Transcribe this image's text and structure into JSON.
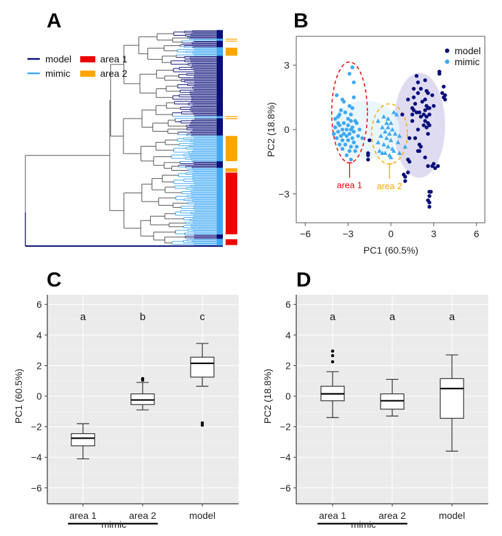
{
  "colors": {
    "model": "#0a0f7a",
    "mimic": "#3fa9f5",
    "area1": "#ee0000",
    "area2": "#ffa500",
    "tree_branch": "#555555",
    "ggplot_bg": "#ebebeb",
    "model_ellipse_fill": "#d9d6f0",
    "mimic_ellipse_fill": "#e6f4fd"
  },
  "chart_data": [
    {
      "panel": "A",
      "type": "dendrogram",
      "title": "A",
      "legend": [
        {
          "label": "model",
          "kind": "line",
          "color_key": "model"
        },
        {
          "label": "mimic",
          "kind": "line",
          "color_key": "mimic"
        },
        {
          "label": "area 1",
          "kind": "box",
          "color_key": "area1"
        },
        {
          "label": "area 2",
          "kind": "box",
          "color_key": "area2"
        }
      ],
      "legend_placement": "top-left",
      "tip_groups_top_to_bottom": [
        {
          "group": "model",
          "share": 0.04,
          "area": null
        },
        {
          "group": "mimic",
          "share": 0.01,
          "area": "area2"
        },
        {
          "group": "model",
          "share": 0.03,
          "area": null
        },
        {
          "group": "mimic",
          "share": 0.04,
          "area": "area2"
        },
        {
          "group": "model",
          "share": 0.28,
          "area": null
        },
        {
          "group": "mimic",
          "share": 0.01,
          "area": "area2"
        },
        {
          "group": "model",
          "share": 0.08,
          "area": null
        },
        {
          "group": "mimic",
          "share": 0.12,
          "area": "area2"
        },
        {
          "group": "model",
          "share": 0.03,
          "area": null
        },
        {
          "group": "mimic",
          "share": 0.02,
          "area": "area2"
        },
        {
          "group": "mimic",
          "share": 0.29,
          "area": "area1"
        },
        {
          "group": "model",
          "share": 0.02,
          "area": null
        },
        {
          "group": "mimic",
          "share": 0.03,
          "area": "area1"
        }
      ]
    },
    {
      "panel": "B",
      "type": "scatter",
      "title": "B",
      "xlabel": "PC1 (60.5%)",
      "ylabel": "PC2 (18.8%)",
      "xlim": [
        -6.6,
        6.6
      ],
      "ylim": [
        -4.4,
        4.4
      ],
      "xticks": [
        -6,
        -3,
        0,
        3,
        6
      ],
      "yticks": [
        -3,
        0,
        3
      ],
      "grid": false,
      "legend": [
        "model",
        "mimic"
      ],
      "legend_placement": "top-right",
      "annotations": [
        {
          "text": "area 1",
          "x": -3.1,
          "y": -2.7,
          "color_key": "area1"
        },
        {
          "text": "area 2",
          "x": -0.3,
          "y": -2.7,
          "color_key": "area2"
        }
      ],
      "ellipses": [
        {
          "name": "area 1",
          "cx": -2.9,
          "cy": 0.8,
          "rx": 1.25,
          "ry": 2.35,
          "style": "dashed",
          "color_key": "area1"
        },
        {
          "name": "area 2",
          "cx": -0.1,
          "cy": -0.2,
          "rx": 1.25,
          "ry": 1.4,
          "style": "dashed",
          "color_key": "area2"
        },
        {
          "name": "model",
          "cx": 2.0,
          "cy": 0.2,
          "rx": 1.8,
          "ry": 2.45,
          "style": "filled",
          "color_key": "model_ellipse_fill"
        },
        {
          "name": "mimic",
          "cx": -1.8,
          "cy": 0.0,
          "rx": 2.4,
          "ry": 1.35,
          "style": "filled",
          "color_key": "mimic_ellipse_fill"
        }
      ],
      "series": [
        {
          "name": "mimic area 1",
          "marker": "circle",
          "color_key": "mimic",
          "points": [
            [
              -2.7,
              2.9
            ],
            [
              -2.9,
              2.6
            ],
            [
              -2.6,
              2.2
            ],
            [
              -3.8,
              1.6
            ],
            [
              -2.6,
              1.5
            ],
            [
              -3.4,
              1.4
            ],
            [
              -3.3,
              1.3
            ],
            [
              -2.9,
              1.1
            ],
            [
              -2.7,
              1.0
            ],
            [
              -3.5,
              0.9
            ],
            [
              -3.2,
              0.8
            ],
            [
              -3.6,
              0.7
            ],
            [
              -2.8,
              0.7
            ],
            [
              -3.9,
              0.5
            ],
            [
              -3.7,
              0.6
            ],
            [
              -3.0,
              0.5
            ],
            [
              -2.8,
              0.4
            ],
            [
              -2.5,
              0.4
            ],
            [
              -3.3,
              0.3
            ],
            [
              -2.4,
              0.3
            ],
            [
              -3.6,
              0.2
            ],
            [
              -3.0,
              0.2
            ],
            [
              -2.7,
              0.1
            ],
            [
              -3.9,
              0.1
            ],
            [
              -3.4,
              0.0
            ],
            [
              -3.1,
              0.0
            ],
            [
              -2.8,
              0.0
            ],
            [
              -2.6,
              -0.1
            ],
            [
              -3.7,
              -0.1
            ],
            [
              -3.3,
              -0.2
            ],
            [
              -2.9,
              -0.2
            ],
            [
              -4.0,
              -0.2
            ],
            [
              -3.5,
              -0.3
            ],
            [
              -3.1,
              -0.3
            ],
            [
              -2.7,
              -0.4
            ],
            [
              -2.3,
              -0.3
            ],
            [
              -3.8,
              -0.4
            ],
            [
              -3.4,
              -0.5
            ],
            [
              -3.0,
              -0.5
            ],
            [
              -2.6,
              -0.6
            ],
            [
              -3.6,
              -0.7
            ],
            [
              -3.2,
              -0.7
            ],
            [
              -2.8,
              -0.8
            ],
            [
              -3.4,
              -0.9
            ],
            [
              -2.9,
              -1.0
            ],
            [
              -2.5,
              -1.0
            ],
            [
              -3.1,
              -1.2
            ],
            [
              -2.8,
              -1.4
            ],
            [
              -2.4,
              -0.8
            ],
            [
              -3.7,
              0.3
            ],
            [
              -2.2,
              0.0
            ],
            [
              -2.0,
              -0.4
            ]
          ]
        },
        {
          "name": "mimic area 2",
          "marker": "triangle",
          "color_key": "mimic",
          "points": [
            [
              0.2,
              0.8
            ],
            [
              0.4,
              0.7
            ],
            [
              -0.5,
              0.6
            ],
            [
              -0.9,
              0.4
            ],
            [
              -0.3,
              0.3
            ],
            [
              0.0,
              0.3
            ],
            [
              -0.6,
              0.1
            ],
            [
              -0.2,
              0.1
            ],
            [
              0.1,
              0.0
            ],
            [
              -0.4,
              -0.1
            ],
            [
              -0.1,
              -0.2
            ],
            [
              0.3,
              -0.2
            ],
            [
              -0.7,
              -0.3
            ],
            [
              0.6,
              -0.3
            ],
            [
              -0.3,
              -0.4
            ],
            [
              0.0,
              -0.5
            ],
            [
              0.5,
              -0.6
            ],
            [
              -0.5,
              -0.7
            ],
            [
              -0.2,
              -0.8
            ],
            [
              0.1,
              -0.9
            ],
            [
              -0.8,
              -1.0
            ],
            [
              -0.4,
              -1.1
            ],
            [
              0.2,
              -1.0
            ],
            [
              -0.1,
              -1.2
            ],
            [
              0.6,
              -1.1
            ],
            [
              -0.6,
              -1.1
            ],
            [
              0.0,
              -1.3
            ],
            [
              1.0,
              -0.8
            ],
            [
              -0.2,
              0.5
            ],
            [
              -0.9,
              -0.6
            ]
          ]
        },
        {
          "name": "model",
          "marker": "circle",
          "color_key": "model",
          "points": [
            [
              1.8,
              2.5
            ],
            [
              3.4,
              2.7
            ],
            [
              3.4,
              2.6
            ],
            [
              1.9,
              2.2
            ],
            [
              2.4,
              2.3
            ],
            [
              1.6,
              1.9
            ],
            [
              2.1,
              1.9
            ],
            [
              3.7,
              2.0
            ],
            [
              1.9,
              1.7
            ],
            [
              2.5,
              1.8
            ],
            [
              2.6,
              1.7
            ],
            [
              3.6,
              1.7
            ],
            [
              3.8,
              1.6
            ],
            [
              3.7,
              1.5
            ],
            [
              2.9,
              1.6
            ],
            [
              1.2,
              1.4
            ],
            [
              1.6,
              1.5
            ],
            [
              2.4,
              1.4
            ],
            [
              3.8,
              1.4
            ],
            [
              1.7,
              1.2
            ],
            [
              2.2,
              1.3
            ],
            [
              2.5,
              1.1
            ],
            [
              3.0,
              1.1
            ],
            [
              2.6,
              1.0
            ],
            [
              1.5,
              1.0
            ],
            [
              2.4,
              0.9
            ],
            [
              2.7,
              1.0
            ],
            [
              1.6,
              0.9
            ],
            [
              1.8,
              0.8
            ],
            [
              2.0,
              0.8
            ],
            [
              1.5,
              0.7
            ],
            [
              2.3,
              0.7
            ],
            [
              2.7,
              0.7
            ],
            [
              0.8,
              0.7
            ],
            [
              2.5,
              0.6
            ],
            [
              2.1,
              0.6
            ],
            [
              1.5,
              0.4
            ],
            [
              2.4,
              0.4
            ],
            [
              2.6,
              0.3
            ],
            [
              2.7,
              0.2
            ],
            [
              2.3,
              0.2
            ],
            [
              2.5,
              0.1
            ],
            [
              1.9,
              0.0
            ],
            [
              2.6,
              -0.2
            ],
            [
              1.3,
              -0.4
            ],
            [
              1.7,
              -0.4
            ],
            [
              2.0,
              -0.7
            ],
            [
              2.1,
              -0.8
            ],
            [
              1.9,
              -1.0
            ],
            [
              2.0,
              -1.0
            ],
            [
              2.4,
              -1.3
            ],
            [
              1.2,
              -1.4
            ],
            [
              1.3,
              -1.5
            ],
            [
              2.6,
              -1.7
            ],
            [
              2.9,
              -1.7
            ],
            [
              3.0,
              -1.6
            ],
            [
              3.1,
              -1.8
            ],
            [
              3.3,
              -1.7
            ],
            [
              0.9,
              -2.1
            ],
            [
              1.0,
              -2.2
            ],
            [
              1.2,
              -2.0
            ],
            [
              1.0,
              -2.4
            ],
            [
              2.7,
              -2.9
            ],
            [
              2.8,
              -2.9
            ],
            [
              2.7,
              -3.1
            ],
            [
              2.6,
              -3.3
            ],
            [
              2.7,
              -3.4
            ],
            [
              2.7,
              -3.6
            ],
            [
              -1.5,
              -0.5
            ],
            [
              -1.6,
              -1.1
            ],
            [
              -1.6,
              -1.2
            ],
            [
              -1.6,
              -1.4
            ]
          ]
        }
      ]
    },
    {
      "panel": "C",
      "type": "box",
      "title": "C",
      "ylabel": "PC1 (60.5%)",
      "xlabel": "",
      "categories": [
        "area 1",
        "area 2",
        "model"
      ],
      "group_label": "mimic",
      "group_spans": [
        "area 1",
        "area 2"
      ],
      "ylim": [
        -6.6,
        6.6
      ],
      "yticks": [
        -6,
        -4,
        -2,
        0,
        2,
        4,
        6
      ],
      "grid": true,
      "significance_letters": [
        "a",
        "b",
        "c"
      ],
      "significance_y": 5.2,
      "boxes": [
        {
          "category": "area 1",
          "whisker_low": -4.1,
          "q1": -3.25,
          "median": -2.75,
          "q3": -2.45,
          "whisker_high": -1.8,
          "outliers": []
        },
        {
          "category": "area 2",
          "whisker_low": -0.9,
          "q1": -0.55,
          "median": -0.25,
          "q3": 0.15,
          "whisker_high": 0.9,
          "outliers": [
            1.05,
            1.15
          ]
        },
        {
          "category": "model",
          "whisker_low": 0.65,
          "q1": 1.25,
          "median": 2.15,
          "q3": 2.55,
          "whisker_high": 3.45,
          "outliers": [
            -1.75,
            -1.9
          ]
        }
      ]
    },
    {
      "panel": "D",
      "type": "box",
      "title": "D",
      "ylabel": "PC2 (18.8%)",
      "xlabel": "",
      "categories": [
        "area 1",
        "area 2",
        "model"
      ],
      "group_label": "mimic",
      "group_spans": [
        "area 1",
        "area 2"
      ],
      "ylim": [
        -6.6,
        6.6
      ],
      "yticks": [
        -6,
        -4,
        -2,
        0,
        2,
        4,
        6
      ],
      "grid": true,
      "significance_letters": [
        "a",
        "a",
        "a"
      ],
      "significance_y": 5.2,
      "boxes": [
        {
          "category": "area 1",
          "whisker_low": -1.4,
          "q1": -0.3,
          "median": 0.15,
          "q3": 0.65,
          "whisker_high": 1.6,
          "outliers": [
            2.25,
            2.65,
            2.95
          ]
        },
        {
          "category": "area 2",
          "whisker_low": -1.3,
          "q1": -0.85,
          "median": -0.3,
          "q3": 0.15,
          "whisker_high": 1.1,
          "outliers": []
        },
        {
          "category": "model",
          "whisker_low": -3.6,
          "q1": -1.45,
          "median": 0.5,
          "q3": 1.15,
          "whisker_high": 2.7,
          "outliers": []
        }
      ]
    }
  ]
}
